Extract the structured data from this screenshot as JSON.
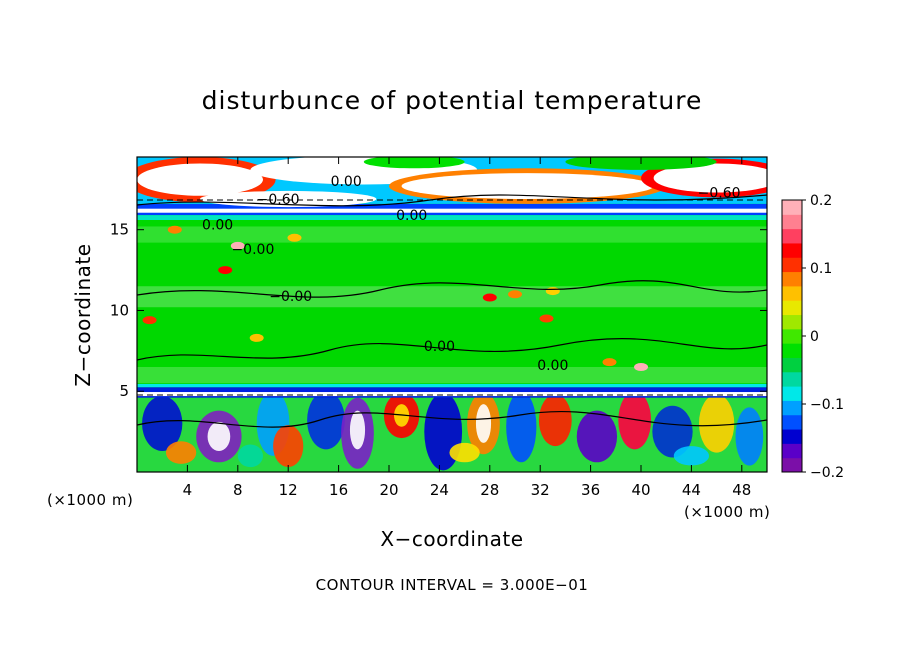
{
  "chart_data": {
    "type": "heatmap",
    "title": "disturbunce of potential temperature",
    "xlabel": "X−coordinate",
    "ylabel": "Z−coordinate",
    "x_unit_left": "(×1000 m)",
    "x_unit_right": "(×1000 m)",
    "footer": "CONTOUR INTERVAL = 3.000E−01",
    "xlim": [
      0,
      50
    ],
    "ylim": [
      0,
      19.5
    ],
    "x_ticks": [
      4,
      8,
      12,
      16,
      20,
      24,
      28,
      32,
      36,
      40,
      44,
      48
    ],
    "y_ticks": [
      5,
      10,
      15
    ],
    "colorbar": {
      "range": [
        -0.2,
        0.2
      ],
      "ticks": [
        0.2,
        0.1,
        0,
        -0.1,
        -0.2
      ],
      "tick_labels": [
        "0.2",
        "0.1",
        "0",
        "−0.1",
        "−0.2"
      ],
      "colors": [
        "#7b0fa8",
        "#5a00c8",
        "#0000d0",
        "#0050ff",
        "#00a0ff",
        "#00e8e8",
        "#00d8a0",
        "#00d040",
        "#00e000",
        "#40e800",
        "#a0e800",
        "#e8e800",
        "#ffc000",
        "#ff8000",
        "#ff3000",
        "#ff0000",
        "#ff4060",
        "#ff8090",
        "#ffb0b8"
      ]
    },
    "contour_labels": [
      {
        "text": "0.00",
        "x": 16.6,
        "y": 17.7
      },
      {
        "text": "−0.60",
        "x": 11.2,
        "y": 16.6
      },
      {
        "text": "0.00",
        "x": 21.8,
        "y": 15.6
      },
      {
        "text": "−0.60",
        "x": 46.2,
        "y": 17.0
      },
      {
        "text": "0.00",
        "x": 6.4,
        "y": 15.0
      },
      {
        "text": "−0.00",
        "x": 9.2,
        "y": 13.5
      },
      {
        "text": "−0.00",
        "x": 12.2,
        "y": 10.6
      },
      {
        "text": "0.00",
        "x": 24.0,
        "y": 7.5
      },
      {
        "text": "0.00",
        "x": 33.0,
        "y": 6.3
      }
    ],
    "grid": false
  }
}
